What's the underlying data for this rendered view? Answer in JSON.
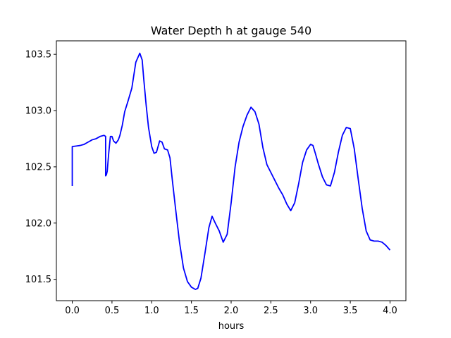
{
  "chart_data": {
    "type": "line",
    "title": "Water Depth h at gauge 540",
    "xlabel": "hours",
    "ylabel": "",
    "xlim": [
      -0.2,
      4.2
    ],
    "ylim": [
      101.31,
      103.62
    ],
    "x_ticks": [
      0.0,
      0.5,
      1.0,
      1.5,
      2.0,
      2.5,
      3.0,
      3.5,
      4.0
    ],
    "x_tick_labels": [
      "0.0",
      "0.5",
      "1.0",
      "1.5",
      "2.0",
      "2.5",
      "3.0",
      "3.5",
      "4.0"
    ],
    "y_ticks": [
      101.5,
      102.0,
      102.5,
      103.0,
      103.5
    ],
    "y_tick_labels": [
      "101.5",
      "102.0",
      "102.5",
      "103.0",
      "103.5"
    ],
    "grid": false,
    "series": [
      {
        "color": "#0000ff",
        "x": [
          0.0,
          0.0,
          0.0,
          0.05,
          0.1,
          0.15,
          0.2,
          0.25,
          0.3,
          0.35,
          0.4,
          0.42,
          0.42,
          0.43,
          0.44,
          0.46,
          0.48,
          0.5,
          0.52,
          0.55,
          0.58,
          0.6,
          0.63,
          0.66,
          0.7,
          0.75,
          0.8,
          0.85,
          0.88,
          0.9,
          0.93,
          0.96,
          1.0,
          1.03,
          1.06,
          1.1,
          1.13,
          1.16,
          1.2,
          1.23,
          1.26,
          1.3,
          1.35,
          1.4,
          1.45,
          1.5,
          1.55,
          1.58,
          1.62,
          1.67,
          1.72,
          1.76,
          1.8,
          1.85,
          1.9,
          1.95,
          2.0,
          2.05,
          2.1,
          2.15,
          2.2,
          2.25,
          2.3,
          2.35,
          2.4,
          2.45,
          2.5,
          2.55,
          2.6,
          2.65,
          2.7,
          2.75,
          2.8,
          2.85,
          2.9,
          2.95,
          3.0,
          3.03,
          3.06,
          3.1,
          3.15,
          3.2,
          3.25,
          3.3,
          3.35,
          3.4,
          3.45,
          3.5,
          3.55,
          3.6,
          3.65,
          3.7,
          3.75,
          3.8,
          3.85,
          3.9,
          3.95,
          4.0
        ],
        "y": [
          102.33,
          102.68,
          102.68,
          102.685,
          102.69,
          102.7,
          102.72,
          102.74,
          102.75,
          102.77,
          102.78,
          102.77,
          102.42,
          102.43,
          102.46,
          102.63,
          102.77,
          102.77,
          102.73,
          102.71,
          102.74,
          102.78,
          102.87,
          102.99,
          103.08,
          103.2,
          103.43,
          103.51,
          103.45,
          103.28,
          103.05,
          102.85,
          102.68,
          102.62,
          102.63,
          102.73,
          102.72,
          102.66,
          102.65,
          102.58,
          102.38,
          102.13,
          101.83,
          101.6,
          101.48,
          101.43,
          101.41,
          101.42,
          101.51,
          101.73,
          101.96,
          102.06,
          102.0,
          101.93,
          101.83,
          101.9,
          102.18,
          102.5,
          102.72,
          102.86,
          102.96,
          103.03,
          102.99,
          102.88,
          102.67,
          102.52,
          102.45,
          102.38,
          102.31,
          102.25,
          102.17,
          102.11,
          102.18,
          102.35,
          102.54,
          102.65,
          102.7,
          102.69,
          102.62,
          102.52,
          102.41,
          102.34,
          102.33,
          102.45,
          102.63,
          102.78,
          102.85,
          102.84,
          102.66,
          102.39,
          102.13,
          101.93,
          101.85,
          101.84,
          101.84,
          101.83,
          101.8,
          101.76
        ]
      }
    ]
  }
}
